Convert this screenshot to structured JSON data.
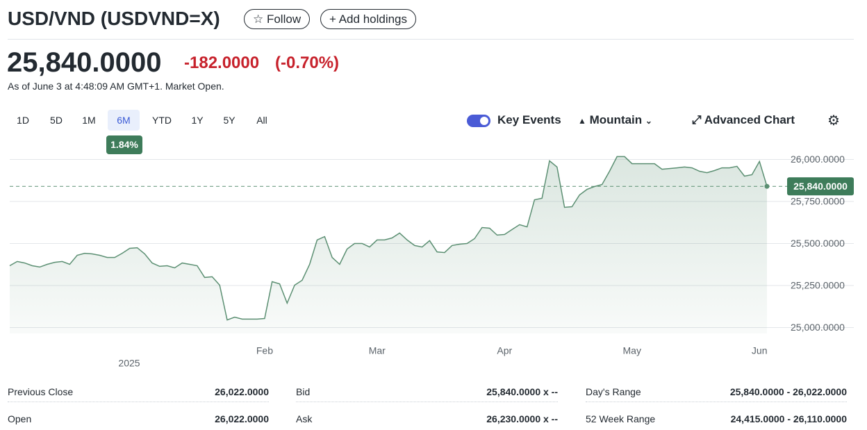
{
  "header": {
    "title": "USD/VND (USDVND=X)",
    "follow": "Follow",
    "add_holdings": "Add holdings"
  },
  "quote": {
    "price": "25,840.0000",
    "change": "-182.0000",
    "change_percent": "(-0.70%)",
    "as_of": "As of June 3 at 4:48:09 AM GMT+1. Market Open."
  },
  "ranges": [
    "1D",
    "5D",
    "1M",
    "6M",
    "YTD",
    "1Y",
    "5Y",
    "All"
  ],
  "active_range": "6M",
  "range_change": "1.84%",
  "toolbar": {
    "key_events": "Key Events",
    "chart_style": "Mountain",
    "advanced_chart": "Advanced Chart"
  },
  "chart_data": {
    "type": "area",
    "color": "#5b8f72",
    "x_year": "2025",
    "categories": [
      null,
      null,
      null,
      null,
      null,
      null,
      null,
      null,
      null,
      null,
      null,
      null,
      null,
      null,
      null,
      null,
      null,
      null,
      null,
      null,
      null,
      null,
      null,
      null,
      null,
      null,
      null,
      null,
      null,
      null,
      null,
      null,
      null,
      null,
      "Feb",
      null,
      null,
      null,
      null,
      null,
      null,
      null,
      null,
      null,
      null,
      null,
      null,
      null,
      null,
      "Mar",
      null,
      null,
      null,
      null,
      null,
      null,
      null,
      null,
      null,
      null,
      null,
      null,
      null,
      null,
      null,
      null,
      "Apr",
      null,
      null,
      null,
      null,
      null,
      null,
      null,
      null,
      null,
      null,
      null,
      null,
      null,
      null,
      null,
      null,
      "May",
      null,
      null,
      null,
      null,
      null,
      null,
      null,
      null,
      null,
      null,
      null,
      null,
      null,
      null,
      null,
      null,
      "Jun",
      null
    ],
    "values": [
      25368,
      25393,
      25384,
      25368,
      25360,
      25376,
      25388,
      25393,
      25376,
      25430,
      25442,
      25438,
      25430,
      25417,
      25417,
      25442,
      25471,
      25475,
      25438,
      25384,
      25364,
      25368,
      25355,
      25384,
      25376,
      25368,
      25298,
      25302,
      25252,
      25045,
      25062,
      25050,
      25050,
      25050,
      25054,
      25273,
      25260,
      25145,
      25252,
      25281,
      25376,
      25521,
      25541,
      25417,
      25376,
      25467,
      25500,
      25500,
      25479,
      25521,
      25521,
      25533,
      25562,
      25521,
      25488,
      25479,
      25517,
      25450,
      25446,
      25488,
      25496,
      25500,
      25529,
      25595,
      25591,
      25550,
      25554,
      25583,
      25612,
      25599,
      25760,
      25769,
      25992,
      25955,
      25715,
      25719,
      25789,
      25822,
      25839,
      25851,
      25930,
      26017,
      26017,
      25975,
      25975,
      25975,
      25975,
      25942,
      25946,
      25950,
      25955,
      25950,
      25930,
      25921,
      25934,
      25950,
      25950,
      25959,
      25901,
      25909,
      25988,
      25840
    ],
    "ylim": [
      24965,
      26060
    ],
    "yticks": [
      {
        "value": 25000,
        "label": "25,000.0000"
      },
      {
        "value": 25250,
        "label": "25,250.0000"
      },
      {
        "value": 25500,
        "label": "25,500.0000"
      },
      {
        "value": 25750,
        "label": "25,750.0000"
      },
      {
        "value": 26000,
        "label": "26,000.0000"
      }
    ],
    "grid": true
  },
  "stats": {
    "columns": [
      [
        {
          "label": "Previous Close",
          "value": "26,022.0000"
        },
        {
          "label": "Open",
          "value": "26,022.0000"
        }
      ],
      [
        {
          "label": "Bid",
          "value": "25,840.0000 x --"
        },
        {
          "label": "Ask",
          "value": "26,230.0000 x --"
        }
      ],
      [
        {
          "label": "Day's Range",
          "value": "25,840.0000 - 26,022.0000"
        },
        {
          "label": "52 Week Range",
          "value": "24,415.0000 - 26,110.0000"
        }
      ]
    ]
  }
}
